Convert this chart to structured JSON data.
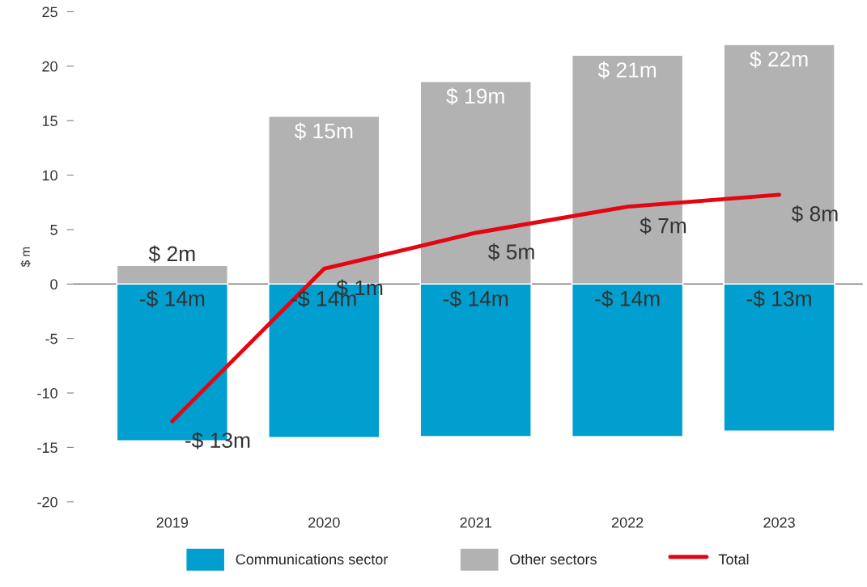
{
  "chart_data": {
    "type": "bar",
    "stacked": true,
    "ylabel": "$ m",
    "categories": [
      "2019",
      "2020",
      "2021",
      "2022",
      "2023"
    ],
    "series": [
      {
        "name": "Communications sector",
        "color": "#009fd0",
        "values": [
          -14.4,
          -14.1,
          -14.0,
          -14.0,
          -13.5
        ],
        "value_labels": [
          "-$ 14m",
          "-$ 14m",
          "-$ 14m",
          "-$ 14m",
          "-$ 13m"
        ]
      },
      {
        "name": "Other sectors",
        "color": "#b2b2b2",
        "values": [
          1.7,
          15.4,
          18.6,
          21.0,
          22.0
        ],
        "value_labels": [
          "$ 2m",
          "$ 15m",
          "$ 19m",
          "$ 21m",
          "$ 22m"
        ]
      },
      {
        "name": "Total",
        "type": "line",
        "color": "#e30613",
        "values": [
          -12.6,
          1.4,
          4.7,
          7.1,
          8.2
        ],
        "value_labels": [
          "-$ 13m",
          "$ 1m",
          "$ 5m",
          "$ 7m",
          "$ 8m"
        ]
      }
    ],
    "ylim": [
      -20,
      25
    ],
    "yticks": [
      -20,
      -15,
      -10,
      -5,
      0,
      5,
      10,
      15,
      20,
      25
    ],
    "ref_lines": [
      {
        "axis": "y",
        "value": 0,
        "color": "#808080"
      }
    ],
    "grid": false,
    "legend": "bottom"
  }
}
